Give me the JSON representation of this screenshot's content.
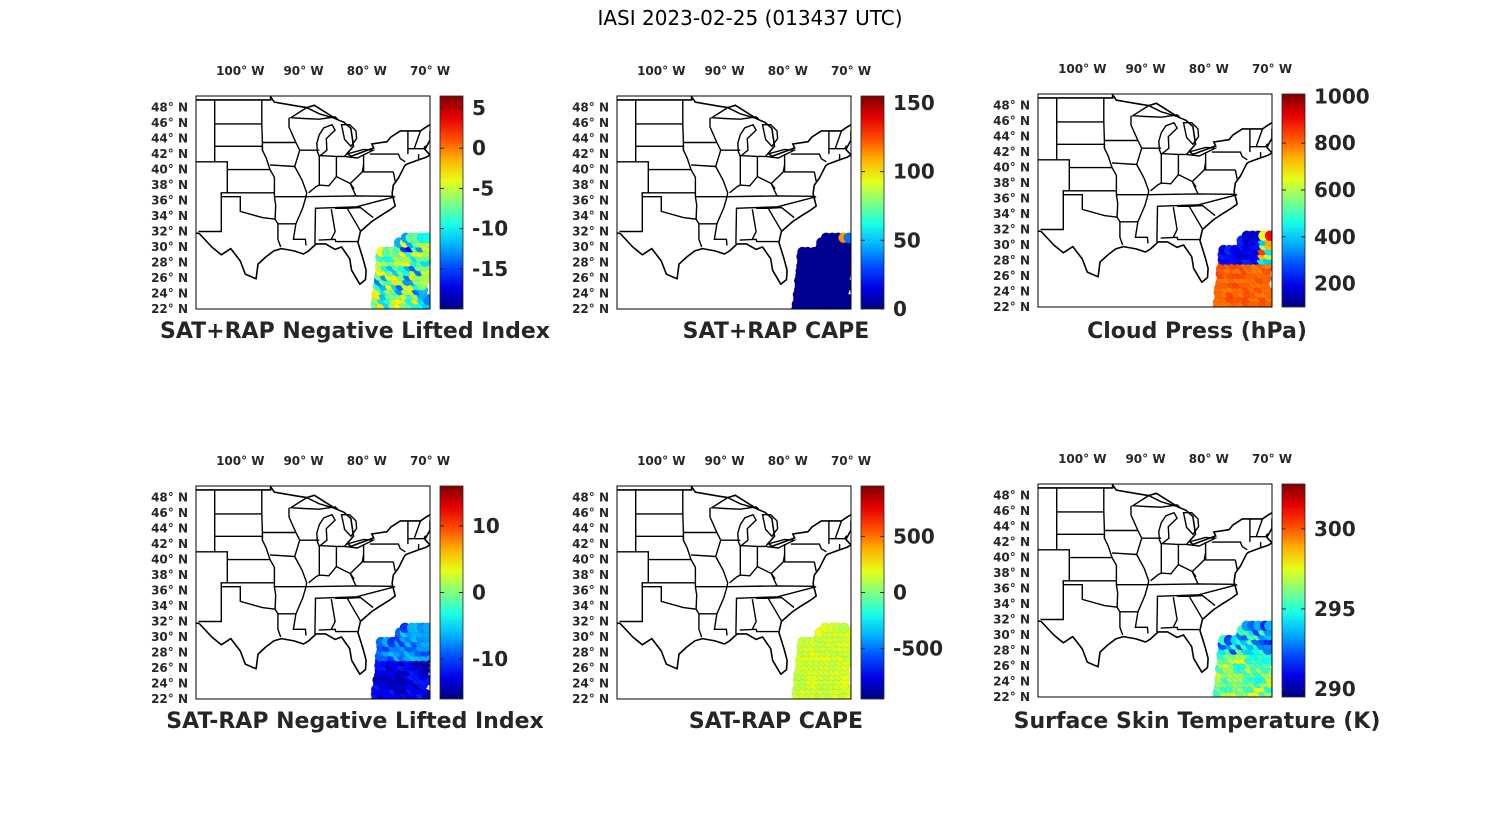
{
  "figure": {
    "title": "IASI 2023-02-25 (013437 UTC)"
  },
  "colors": {
    "outline": "#000000",
    "text": "#262626"
  },
  "axes": {
    "lon_labels": [
      "100° W",
      "90° W",
      "80° W",
      "70° W"
    ],
    "lon_values": [
      -100,
      -90,
      -80,
      -70
    ],
    "lat_labels": [
      "48° N",
      "46° N",
      "44° N",
      "42° N",
      "40° N",
      "38° N",
      "36° N",
      "34° N",
      "32° N",
      "30° N",
      "28° N",
      "26° N",
      "24° N",
      "22° N"
    ],
    "lat_values": [
      48,
      46,
      44,
      42,
      40,
      38,
      36,
      34,
      32,
      30,
      28,
      26,
      24,
      22
    ],
    "lon_range": [
      -107,
      -70
    ],
    "lat_range": [
      22,
      49.5
    ]
  },
  "chart_data": [
    {
      "type": "heatmap",
      "title": "SAT+RAP Negative Lifted Index",
      "colorbar": {
        "range": [
          -20,
          6.5
        ],
        "ticks": [
          5,
          0,
          -5,
          -10,
          -15
        ]
      },
      "mode": "mixed"
    },
    {
      "type": "heatmap",
      "title": "SAT+RAP CAPE",
      "colorbar": {
        "range": [
          0,
          155
        ],
        "ticks": [
          150,
          100,
          50,
          0
        ]
      },
      "mode": "low"
    },
    {
      "type": "heatmap",
      "title": "Cloud Press (hPa)",
      "colorbar": {
        "range": [
          100,
          1010
        ],
        "ticks": [
          1000,
          800,
          600,
          400,
          200
        ]
      },
      "mode": "cloud"
    },
    {
      "type": "heatmap",
      "title": "SAT-RAP Negative Lifted Index",
      "colorbar": {
        "range": [
          -16,
          16
        ],
        "ticks": [
          10,
          0,
          -10
        ]
      },
      "mode": "blue"
    },
    {
      "type": "heatmap",
      "title": "SAT-RAP CAPE",
      "colorbar": {
        "range": [
          -950,
          950
        ],
        "ticks": [
          500,
          0,
          -500
        ]
      },
      "mode": "green"
    },
    {
      "type": "heatmap",
      "title": "Surface Skin Temperature (K)",
      "colorbar": {
        "range": [
          289.5,
          302.8
        ],
        "ticks": [
          300,
          295,
          290
        ]
      },
      "mode": "skin"
    }
  ]
}
